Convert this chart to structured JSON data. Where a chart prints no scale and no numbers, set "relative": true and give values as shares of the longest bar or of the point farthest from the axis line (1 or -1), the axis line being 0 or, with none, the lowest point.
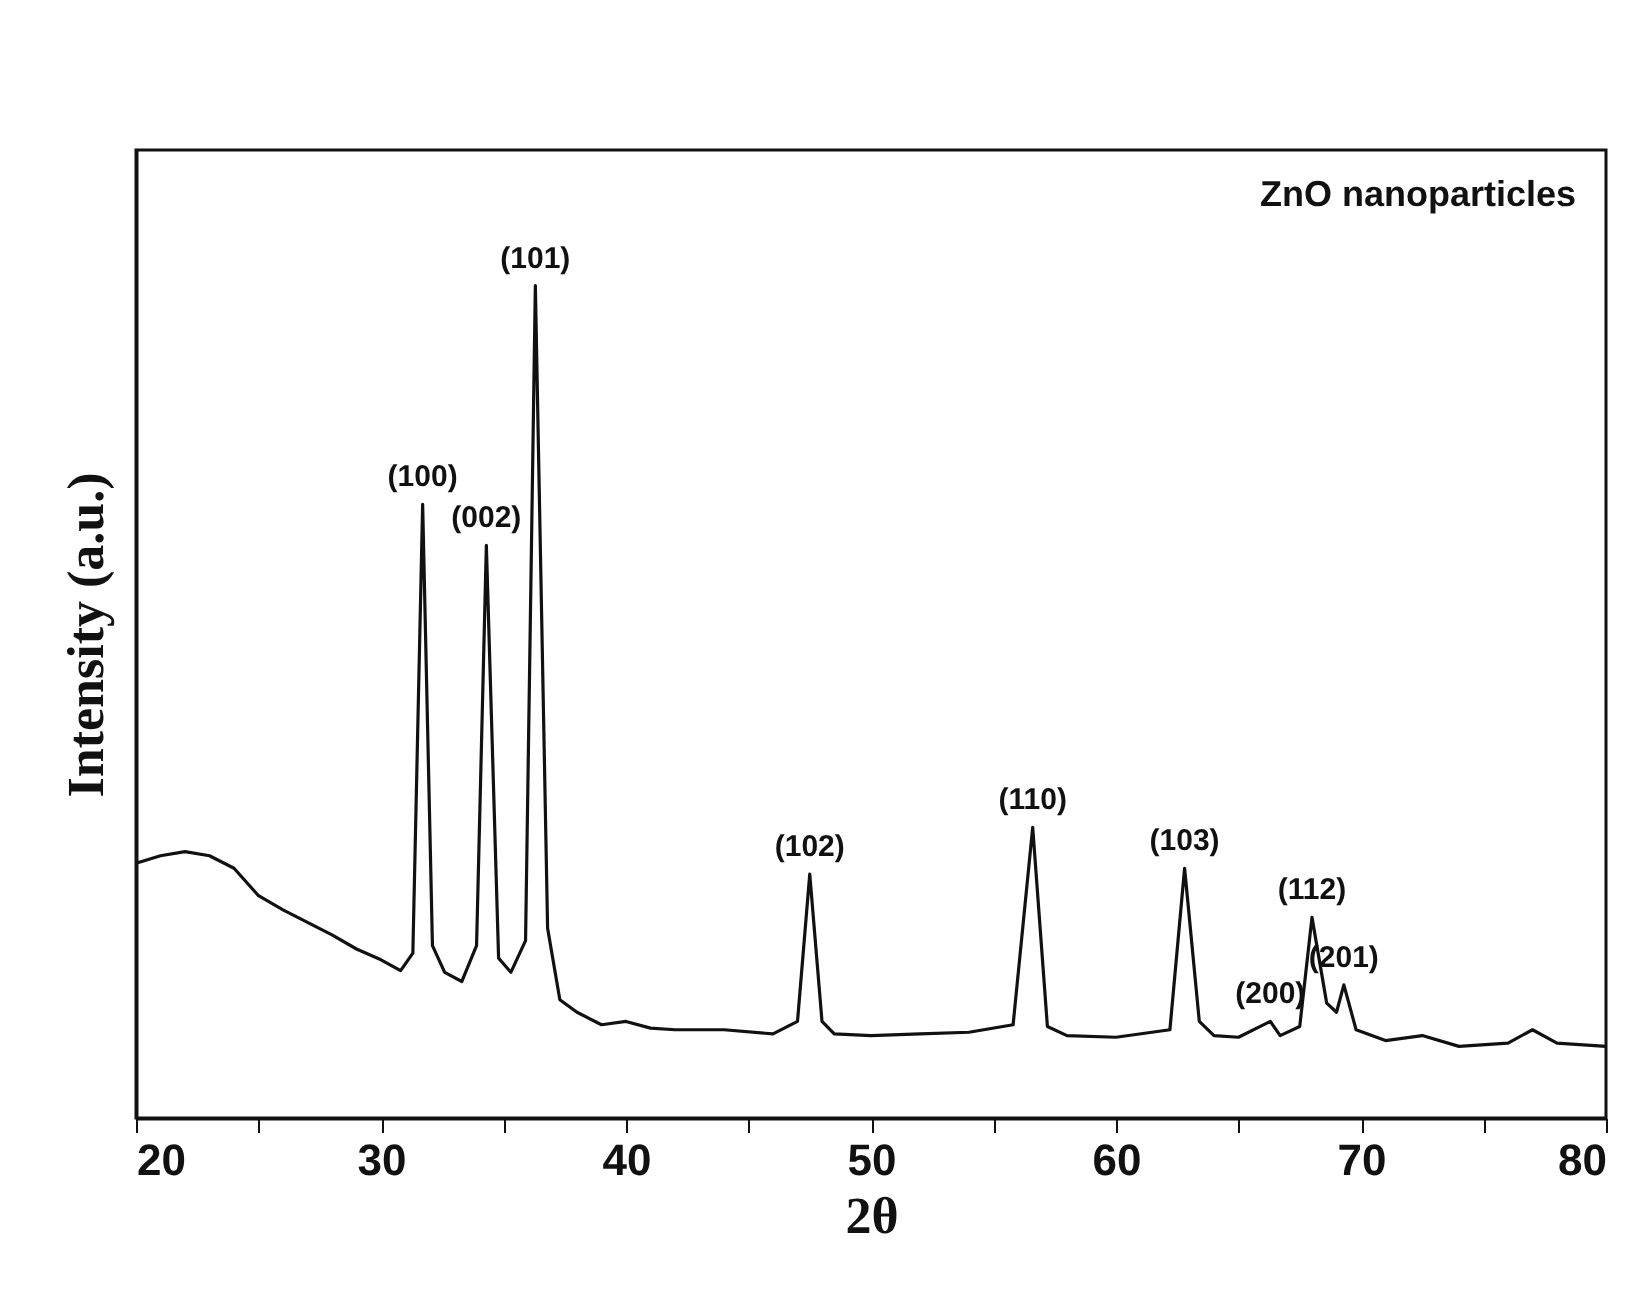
{
  "chart_data": {
    "type": "line",
    "relative": true,
    "xlabel": "2θ",
    "ylabel": "Intensity (a.u.)",
    "xlim": [
      20,
      80
    ],
    "xticks": [
      20,
      {
        "value": 25,
        "label": null
      },
      30,
      {
        "value": 35,
        "label": null
      },
      40,
      {
        "value": 45,
        "label": null
      },
      50,
      {
        "value": 55,
        "label": null
      },
      60,
      {
        "value": 65,
        "label": null
      },
      70,
      {
        "value": 75,
        "label": null
      },
      80
    ],
    "grid": false,
    "marker": "none",
    "line_style": "solid",
    "annotations": [
      "ZnO nanoparticles",
      {
        "text": "(100)",
        "x": 31.7,
        "y": 0.737
      },
      {
        "text": "(002)",
        "x": 34.3,
        "y": 0.688
      },
      {
        "text": "(101)",
        "x": 36.3,
        "y": 1.0
      },
      {
        "text": "(102)",
        "x": 47.5,
        "y": 0.293
      },
      {
        "text": "(110)",
        "x": 56.6,
        "y": 0.349
      },
      {
        "text": "(103)",
        "x": 62.8,
        "y": 0.3
      },
      {
        "text": "(200)",
        "x": 66.3,
        "y": 0.116
      },
      {
        "text": "(112)",
        "x": 68,
        "y": 0.241
      },
      {
        "text": "(201)",
        "x": 69.3,
        "y": 0.16
      }
    ],
    "series": [
      {
        "color": "#111111",
        "x": [
          20,
          21,
          22,
          23,
          24,
          25,
          26,
          27,
          28,
          29,
          30,
          30.8,
          31.3,
          31.7,
          32.1,
          32.6,
          33.3,
          33.9,
          34.3,
          34.8,
          35.3,
          35.9,
          36.3,
          36.8,
          37.3,
          38,
          39,
          40,
          41,
          42,
          44,
          46,
          47,
          47.5,
          48,
          48.5,
          50,
          52,
          54,
          55.8,
          56.6,
          57.2,
          58,
          60,
          62.2,
          62.8,
          63.4,
          64,
          65,
          66.3,
          66.7,
          67.5,
          68,
          68.6,
          69,
          69.3,
          69.8,
          71,
          72.5,
          74,
          76,
          77,
          78,
          80
        ],
        "values": [
          0.306,
          0.315,
          0.32,
          0.315,
          0.3,
          0.267,
          0.25,
          0.235,
          0.22,
          0.203,
          0.19,
          0.177,
          0.198,
          0.737,
          0.207,
          0.175,
          0.164,
          0.207,
          0.688,
          0.192,
          0.175,
          0.213,
          1.0,
          0.228,
          0.142,
          0.127,
          0.112,
          0.116,
          0.108,
          0.106,
          0.106,
          0.101,
          0.116,
          0.293,
          0.116,
          0.101,
          0.099,
          0.101,
          0.103,
          0.112,
          0.349,
          0.11,
          0.099,
          0.097,
          0.106,
          0.3,
          0.116,
          0.099,
          0.097,
          0.116,
          0.099,
          0.11,
          0.241,
          0.138,
          0.127,
          0.16,
          0.106,
          0.093,
          0.099,
          0.086,
          0.09,
          0.106,
          0.09,
          0.086
        ]
      }
    ]
  }
}
